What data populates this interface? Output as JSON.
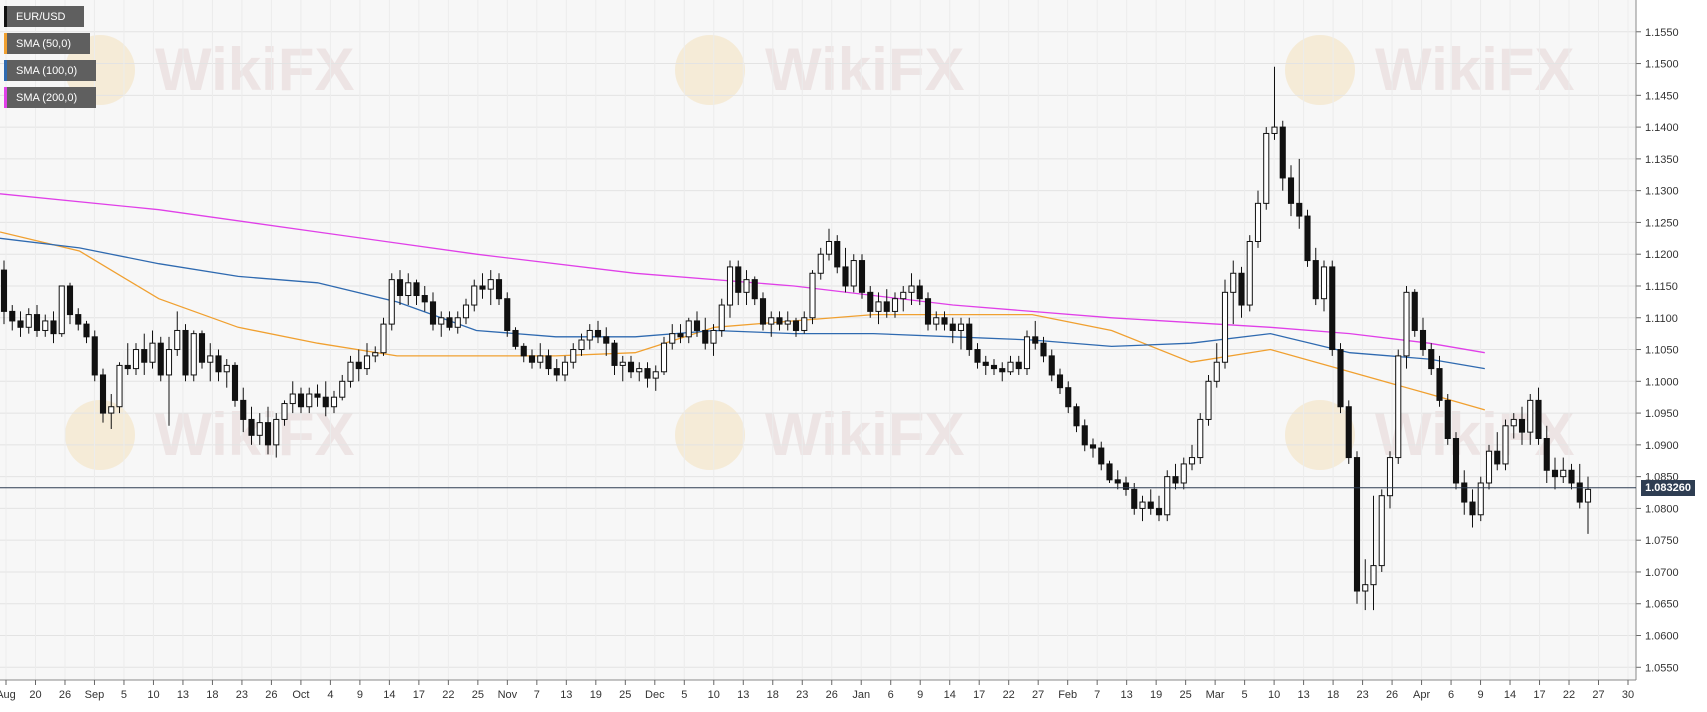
{
  "chart_data": {
    "type": "candlestick",
    "symbol": "EUR/USD",
    "current_price": "1.083260",
    "legend": [
      {
        "label": "EUR/USD",
        "color": "#111111"
      },
      {
        "label": "SMA (50,0)",
        "color": "#f0a030"
      },
      {
        "label": "SMA (100,0)",
        "color": "#2f6ab0"
      },
      {
        "label": "SMA (200,0)",
        "color": "#e040e8"
      }
    ],
    "ylim": [
      1.053,
      1.16
    ],
    "y_ticks": [
      "1.0550",
      "1.0600",
      "1.0650",
      "1.0700",
      "1.0750",
      "1.0800",
      "1.0850",
      "1.0900",
      "1.0950",
      "1.1000",
      "1.1050",
      "1.1100",
      "1.1150",
      "1.1200",
      "1.1250",
      "1.1300",
      "1.1350",
      "1.1400",
      "1.1450",
      "1.1500",
      "1.1550"
    ],
    "x_ticks": [
      "Aug",
      "20",
      "26",
      "Sep",
      "5",
      "10",
      "13",
      "18",
      "23",
      "26",
      "Oct",
      "4",
      "9",
      "14",
      "17",
      "22",
      "25",
      "Nov",
      "7",
      "13",
      "19",
      "25",
      "Dec",
      "5",
      "10",
      "13",
      "18",
      "23",
      "26",
      "Jan",
      "6",
      "9",
      "14",
      "17",
      "22",
      "27",
      "Feb",
      "7",
      "13",
      "19",
      "25",
      "Mar",
      "5",
      "10",
      "13",
      "18",
      "23",
      "26",
      "Apr",
      "6",
      "9",
      "14",
      "17",
      "22",
      "27",
      "30"
    ],
    "ohlc": [
      [
        1.1175,
        1.119,
        1.109,
        1.111
      ],
      [
        1.111,
        1.112,
        1.108,
        1.1095
      ],
      [
        1.1095,
        1.111,
        1.107,
        1.1085
      ],
      [
        1.1085,
        1.1115,
        1.1075,
        1.1105
      ],
      [
        1.1105,
        1.112,
        1.107,
        1.108
      ],
      [
        1.108,
        1.1105,
        1.107,
        1.1095
      ],
      [
        1.1095,
        1.111,
        1.106,
        1.1075
      ],
      [
        1.1075,
        1.115,
        1.107,
        1.115
      ],
      [
        1.115,
        1.1155,
        1.109,
        1.1105
      ],
      [
        1.1105,
        1.1115,
        1.108,
        1.109
      ],
      [
        1.109,
        1.1095,
        1.106,
        1.107
      ],
      [
        1.107,
        1.108,
        1.1,
        1.101
      ],
      [
        1.101,
        1.102,
        1.0935,
        1.095
      ],
      [
        1.095,
        1.098,
        1.0925,
        1.096
      ],
      [
        1.096,
        1.103,
        1.095,
        1.1025
      ],
      [
        1.1025,
        1.106,
        1.101,
        1.102
      ],
      [
        1.102,
        1.106,
        1.101,
        1.105
      ],
      [
        1.105,
        1.1075,
        1.101,
        1.103
      ],
      [
        1.103,
        1.108,
        1.102,
        1.106
      ],
      [
        1.106,
        1.107,
        1.1,
        1.101
      ],
      [
        1.101,
        1.107,
        1.093,
        1.105
      ],
      [
        1.105,
        1.111,
        1.104,
        1.108
      ],
      [
        1.108,
        1.109,
        1.1,
        1.101
      ],
      [
        1.101,
        1.108,
        1.1,
        1.1075
      ],
      [
        1.1075,
        1.108,
        1.102,
        1.103
      ],
      [
        1.103,
        1.106,
        1.1,
        1.104
      ],
      [
        1.104,
        1.105,
        1.1,
        1.1015
      ],
      [
        1.1015,
        1.1035,
        1.099,
        1.1025
      ],
      [
        1.1025,
        1.103,
        1.096,
        1.097
      ],
      [
        1.097,
        1.099,
        1.092,
        1.094
      ],
      [
        1.094,
        1.096,
        1.09,
        1.0915
      ],
      [
        1.0915,
        1.095,
        1.09,
        1.0935
      ],
      [
        1.0935,
        1.096,
        1.0885,
        1.09
      ],
      [
        1.09,
        1.095,
        1.088,
        1.094
      ],
      [
        1.094,
        1.097,
        1.093,
        1.0965
      ],
      [
        1.0965,
        1.1,
        1.095,
        1.098
      ],
      [
        1.098,
        1.099,
        1.095,
        1.096
      ],
      [
        1.096,
        1.099,
        1.095,
        1.098
      ],
      [
        1.098,
        1.0995,
        1.096,
        1.0975
      ],
      [
        1.0975,
        1.1,
        1.0945,
        1.096
      ],
      [
        1.096,
        1.0985,
        1.095,
        1.0975
      ],
      [
        1.0975,
        1.101,
        1.097,
        1.1
      ],
      [
        1.1,
        1.104,
        1.099,
        1.103
      ],
      [
        1.103,
        1.105,
        1.1,
        1.102
      ],
      [
        1.102,
        1.106,
        1.101,
        1.104
      ],
      [
        1.104,
        1.1055,
        1.103,
        1.1045
      ],
      [
        1.1045,
        1.11,
        1.104,
        1.109
      ],
      [
        1.109,
        1.117,
        1.108,
        1.116
      ],
      [
        1.116,
        1.1175,
        1.112,
        1.1135
      ],
      [
        1.1135,
        1.117,
        1.112,
        1.1155
      ],
      [
        1.1155,
        1.116,
        1.112,
        1.1135
      ],
      [
        1.1135,
        1.115,
        1.111,
        1.1125
      ],
      [
        1.1125,
        1.114,
        1.108,
        1.109
      ],
      [
        1.109,
        1.111,
        1.107,
        1.11
      ],
      [
        1.11,
        1.111,
        1.108,
        1.1085
      ],
      [
        1.1085,
        1.111,
        1.1075,
        1.11
      ],
      [
        1.11,
        1.113,
        1.109,
        1.112
      ],
      [
        1.112,
        1.116,
        1.111,
        1.115
      ],
      [
        1.115,
        1.117,
        1.113,
        1.1145
      ],
      [
        1.1145,
        1.1175,
        1.112,
        1.116
      ],
      [
        1.116,
        1.117,
        1.112,
        1.113
      ],
      [
        1.113,
        1.114,
        1.107,
        1.108
      ],
      [
        1.108,
        1.1085,
        1.105,
        1.1055
      ],
      [
        1.1055,
        1.106,
        1.103,
        1.104
      ],
      [
        1.104,
        1.105,
        1.102,
        1.103
      ],
      [
        1.103,
        1.106,
        1.102,
        1.104
      ],
      [
        1.104,
        1.105,
        1.101,
        1.102
      ],
      [
        1.102,
        1.1035,
        1.1,
        1.101
      ],
      [
        1.101,
        1.104,
        1.1,
        1.103
      ],
      [
        1.103,
        1.106,
        1.102,
        1.105
      ],
      [
        1.105,
        1.1075,
        1.104,
        1.1065
      ],
      [
        1.1065,
        1.109,
        1.105,
        1.108
      ],
      [
        1.108,
        1.1095,
        1.106,
        1.107
      ],
      [
        1.107,
        1.1085,
        1.104,
        1.106
      ],
      [
        1.106,
        1.1065,
        1.101,
        1.1025
      ],
      [
        1.1025,
        1.104,
        1.1,
        1.103
      ],
      [
        1.103,
        1.104,
        1.1005,
        1.1015
      ],
      [
        1.1015,
        1.103,
        1.1,
        1.102
      ],
      [
        1.102,
        1.103,
        1.099,
        1.1005
      ],
      [
        1.1005,
        1.1025,
        1.0985,
        1.1015
      ],
      [
        1.1015,
        1.107,
        1.101,
        1.106
      ],
      [
        1.106,
        1.109,
        1.105,
        1.1075
      ],
      [
        1.1075,
        1.109,
        1.106,
        1.107
      ],
      [
        1.107,
        1.11,
        1.106,
        1.1095
      ],
      [
        1.1095,
        1.111,
        1.107,
        1.108
      ],
      [
        1.108,
        1.11,
        1.105,
        1.106
      ],
      [
        1.106,
        1.109,
        1.104,
        1.108
      ],
      [
        1.108,
        1.113,
        1.107,
        1.112
      ],
      [
        1.112,
        1.119,
        1.11,
        1.118
      ],
      [
        1.118,
        1.119,
        1.112,
        1.114
      ],
      [
        1.114,
        1.1175,
        1.112,
        1.116
      ],
      [
        1.116,
        1.1165,
        1.112,
        1.113
      ],
      [
        1.113,
        1.114,
        1.108,
        1.109
      ],
      [
        1.109,
        1.111,
        1.107,
        1.11
      ],
      [
        1.11,
        1.111,
        1.108,
        1.109
      ],
      [
        1.109,
        1.111,
        1.108,
        1.1095
      ],
      [
        1.1095,
        1.11,
        1.107,
        1.108
      ],
      [
        1.108,
        1.111,
        1.1075,
        1.11
      ],
      [
        1.11,
        1.1175,
        1.109,
        1.117
      ],
      [
        1.117,
        1.121,
        1.116,
        1.12
      ],
      [
        1.12,
        1.124,
        1.119,
        1.122
      ],
      [
        1.122,
        1.123,
        1.117,
        1.118
      ],
      [
        1.118,
        1.121,
        1.114,
        1.115
      ],
      [
        1.115,
        1.12,
        1.114,
        1.119
      ],
      [
        1.119,
        1.12,
        1.113,
        1.114
      ],
      [
        1.114,
        1.115,
        1.11,
        1.111
      ],
      [
        1.111,
        1.114,
        1.109,
        1.1125
      ],
      [
        1.1125,
        1.1145,
        1.11,
        1.111
      ],
      [
        1.111,
        1.114,
        1.11,
        1.113
      ],
      [
        1.113,
        1.115,
        1.111,
        1.114
      ],
      [
        1.114,
        1.117,
        1.112,
        1.115
      ],
      [
        1.115,
        1.116,
        1.112,
        1.113
      ],
      [
        1.113,
        1.114,
        1.108,
        1.109
      ],
      [
        1.109,
        1.111,
        1.108,
        1.11
      ],
      [
        1.11,
        1.111,
        1.108,
        1.109
      ],
      [
        1.109,
        1.11,
        1.106,
        1.108
      ],
      [
        1.108,
        1.11,
        1.105,
        1.109
      ],
      [
        1.109,
        1.11,
        1.104,
        1.105
      ],
      [
        1.105,
        1.106,
        1.102,
        1.103
      ],
      [
        1.103,
        1.104,
        1.101,
        1.1025
      ],
      [
        1.1025,
        1.1035,
        1.101,
        1.102
      ],
      [
        1.102,
        1.103,
        1.1,
        1.1015
      ],
      [
        1.1015,
        1.104,
        1.101,
        1.103
      ],
      [
        1.103,
        1.104,
        1.101,
        1.102
      ],
      [
        1.102,
        1.108,
        1.101,
        1.107
      ],
      [
        1.107,
        1.1095,
        1.105,
        1.106
      ],
      [
        1.106,
        1.107,
        1.103,
        1.104
      ],
      [
        1.104,
        1.105,
        1.1,
        1.101
      ],
      [
        1.101,
        1.102,
        1.098,
        1.099
      ],
      [
        1.099,
        1.1,
        1.095,
        1.096
      ],
      [
        1.096,
        1.0965,
        1.092,
        1.093
      ],
      [
        1.093,
        1.094,
        1.089,
        1.09
      ],
      [
        1.09,
        1.091,
        1.088,
        1.0895
      ],
      [
        1.0895,
        1.0905,
        1.086,
        1.087
      ],
      [
        1.087,
        1.0875,
        1.084,
        1.0845
      ],
      [
        1.0845,
        1.086,
        1.083,
        1.084
      ],
      [
        1.084,
        1.085,
        1.082,
        1.083
      ],
      [
        1.083,
        1.084,
        1.079,
        1.08
      ],
      [
        1.08,
        1.082,
        1.078,
        1.081
      ],
      [
        1.081,
        1.083,
        1.079,
        1.08
      ],
      [
        1.08,
        1.082,
        1.078,
        1.079
      ],
      [
        1.079,
        1.086,
        1.078,
        1.085
      ],
      [
        1.085,
        1.087,
        1.083,
        1.084
      ],
      [
        1.084,
        1.088,
        1.083,
        1.087
      ],
      [
        1.087,
        1.09,
        1.086,
        1.088
      ],
      [
        1.088,
        1.095,
        1.087,
        1.094
      ],
      [
        1.094,
        1.101,
        1.093,
        1.1
      ],
      [
        1.1,
        1.106,
        1.099,
        1.103
      ],
      [
        1.103,
        1.116,
        1.102,
        1.114
      ],
      [
        1.114,
        1.119,
        1.109,
        1.117
      ],
      [
        1.117,
        1.118,
        1.11,
        1.112
      ],
      [
        1.112,
        1.123,
        1.111,
        1.122
      ],
      [
        1.122,
        1.13,
        1.121,
        1.128
      ],
      [
        1.128,
        1.14,
        1.127,
        1.139
      ],
      [
        1.139,
        1.1495,
        1.138,
        1.14
      ],
      [
        1.14,
        1.141,
        1.13,
        1.132
      ],
      [
        1.132,
        1.134,
        1.126,
        1.128
      ],
      [
        1.128,
        1.135,
        1.124,
        1.126
      ],
      [
        1.126,
        1.127,
        1.118,
        1.119
      ],
      [
        1.119,
        1.121,
        1.112,
        1.113
      ],
      [
        1.113,
        1.119,
        1.111,
        1.118
      ],
      [
        1.118,
        1.119,
        1.104,
        1.105
      ],
      [
        1.105,
        1.106,
        1.095,
        1.096
      ],
      [
        1.096,
        1.097,
        1.087,
        1.088
      ],
      [
        1.088,
        1.089,
        1.065,
        1.067
      ],
      [
        1.067,
        1.072,
        1.064,
        1.068
      ],
      [
        1.068,
        1.082,
        1.064,
        1.071
      ],
      [
        1.071,
        1.083,
        1.07,
        1.082
      ],
      [
        1.082,
        1.089,
        1.08,
        1.088
      ],
      [
        1.088,
        1.105,
        1.087,
        1.104
      ],
      [
        1.104,
        1.115,
        1.102,
        1.114
      ],
      [
        1.114,
        1.1145,
        1.107,
        1.108
      ],
      [
        1.108,
        1.11,
        1.104,
        1.105
      ],
      [
        1.105,
        1.106,
        1.101,
        1.102
      ],
      [
        1.102,
        1.104,
        1.096,
        1.097
      ],
      [
        1.097,
        1.098,
        1.09,
        1.091
      ],
      [
        1.091,
        1.092,
        1.083,
        1.084
      ],
      [
        1.084,
        1.086,
        1.079,
        1.081
      ],
      [
        1.081,
        1.083,
        1.077,
        1.079
      ],
      [
        1.079,
        1.085,
        1.078,
        1.084
      ],
      [
        1.084,
        1.09,
        1.083,
        1.089
      ],
      [
        1.089,
        1.092,
        1.086,
        1.087
      ],
      [
        1.087,
        1.094,
        1.086,
        1.093
      ],
      [
        1.093,
        1.095,
        1.091,
        1.094
      ],
      [
        1.094,
        1.096,
        1.09,
        1.092
      ],
      [
        1.092,
        1.098,
        1.09,
        1.097
      ],
      [
        1.097,
        1.099,
        1.09,
        1.091
      ],
      [
        1.091,
        1.093,
        1.084,
        1.086
      ],
      [
        1.086,
        1.088,
        1.083,
        1.085
      ],
      [
        1.085,
        1.088,
        1.084,
        1.086
      ],
      [
        1.086,
        1.087,
        1.083,
        1.084
      ],
      [
        1.084,
        1.087,
        1.08,
        1.081
      ],
      [
        1.081,
        1.085,
        1.076,
        1.083
      ]
    ],
    "sma": [
      {
        "name": "SMA (50,0)",
        "color": "#f0a030",
        "points": [
          [
            0,
            1.1235
          ],
          [
            0.05,
            1.1205
          ],
          [
            0.1,
            1.113
          ],
          [
            0.15,
            1.1085
          ],
          [
            0.2,
            1.106
          ],
          [
            0.25,
            1.104
          ],
          [
            0.3,
            1.104
          ],
          [
            0.35,
            1.104
          ],
          [
            0.4,
            1.1045
          ],
          [
            0.45,
            1.1085
          ],
          [
            0.5,
            1.1095
          ],
          [
            0.55,
            1.1105
          ],
          [
            0.6,
            1.1105
          ],
          [
            0.65,
            1.1105
          ],
          [
            0.7,
            1.108
          ],
          [
            0.75,
            1.103
          ],
          [
            0.8,
            1.105
          ],
          [
            0.85,
            1.1015
          ],
          [
            0.9,
            1.098
          ],
          [
            0.935,
            1.0955
          ]
        ]
      },
      {
        "name": "SMA (100,0)",
        "color": "#2f6ab0",
        "points": [
          [
            0,
            1.1225
          ],
          [
            0.05,
            1.121
          ],
          [
            0.1,
            1.1185
          ],
          [
            0.15,
            1.1165
          ],
          [
            0.2,
            1.1155
          ],
          [
            0.25,
            1.1125
          ],
          [
            0.3,
            1.108
          ],
          [
            0.35,
            1.107
          ],
          [
            0.4,
            1.107
          ],
          [
            0.45,
            1.108
          ],
          [
            0.5,
            1.1075
          ],
          [
            0.55,
            1.1075
          ],
          [
            0.6,
            1.107
          ],
          [
            0.65,
            1.1065
          ],
          [
            0.7,
            1.1055
          ],
          [
            0.75,
            1.106
          ],
          [
            0.8,
            1.1075
          ],
          [
            0.85,
            1.1045
          ],
          [
            0.9,
            1.1035
          ],
          [
            0.935,
            1.102
          ]
        ]
      },
      {
        "name": "SMA (200,0)",
        "color": "#e040e8",
        "points": [
          [
            0,
            1.1295
          ],
          [
            0.1,
            1.127
          ],
          [
            0.2,
            1.1235
          ],
          [
            0.3,
            1.12
          ],
          [
            0.4,
            1.117
          ],
          [
            0.5,
            1.115
          ],
          [
            0.6,
            1.112
          ],
          [
            0.7,
            1.11
          ],
          [
            0.8,
            1.1085
          ],
          [
            0.85,
            1.1075
          ],
          [
            0.9,
            1.106
          ],
          [
            0.935,
            1.1045
          ]
        ]
      }
    ]
  },
  "watermark": "WikiFX"
}
